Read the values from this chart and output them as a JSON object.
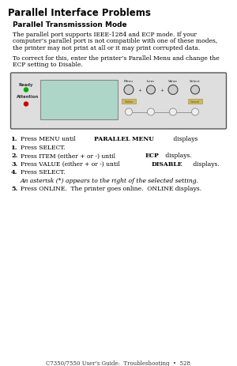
{
  "title": "Parallel Interface Problems",
  "subtitle": "Parallel Transmisssion Mode",
  "para1_lines": [
    "The parallel port supports IEEE-1284 and ECP mode. If your",
    "computer’s parallel port is not compatible with one of these modes,",
    "the printer may not print at all or it may print corrupted data."
  ],
  "para2_lines": [
    "To correct for this, enter the printer’s Parallel Menu and change the",
    "ECP setting to Disable."
  ],
  "steps": [
    {
      "num": "1.",
      "pre": "Press MENU until ",
      "bold": "PARALLEL MENU",
      "post": " displays"
    },
    {
      "num": "1.",
      "pre": "Press SELECT.",
      "bold": "",
      "post": ""
    },
    {
      "num": "2.",
      "pre": "Press ITEM (either + or -) until ",
      "bold": "ECP",
      "post": " displays."
    },
    {
      "num": "3.",
      "pre": "Press VALUE (either + or -) until ",
      "bold": "DISABLE",
      "post": " displays."
    },
    {
      "num": "4.",
      "pre": "Press SELECT.",
      "bold": "",
      "post": ""
    },
    {
      "num": "",
      "pre": "An asterisk (*) appears to the right of the selected setting.",
      "bold": "",
      "post": "",
      "italic": true
    },
    {
      "num": "5.",
      "pre": "Press ONLINE.  The printer goes online.  ONLINE displays.",
      "bold": "",
      "post": ""
    }
  ],
  "footer": "C7350/7550 User’s Guide:  Troubleshooting  •  528",
  "bg_color": "#ffffff",
  "display_color": "#aed6c8",
  "led_green": "#00aa00",
  "led_red": "#cc0000",
  "button_labels": [
    "Menu",
    "Item",
    "Value",
    "Select"
  ],
  "indicator_color": "#ccbb66",
  "panel_face": "#dedede",
  "panel_edge": "#555555",
  "disp_edge": "#888888"
}
